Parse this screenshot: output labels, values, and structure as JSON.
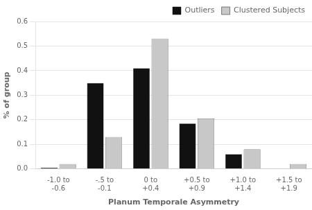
{
  "chart_data": {
    "type": "bar",
    "categories": [
      "-1.0 to\n-0.6",
      "-.5 to\n-0.1",
      "0 to\n+0.4",
      "+0.5 to\n+0.9",
      "+1.0 to\n+1.4",
      "+1.5 to\n+1.9"
    ],
    "series": [
      {
        "name": "Outliers",
        "color": "#111111",
        "values": [
          0.005,
          0.35,
          0.41,
          0.185,
          0.06,
          0.0
        ]
      },
      {
        "name": "Clustered\nSubjects",
        "color": "#c8c8c8",
        "values": [
          0.02,
          0.13,
          0.53,
          0.205,
          0.08,
          0.02
        ]
      }
    ],
    "xlabel": "Planum Temporale Asymmetry",
    "ylabel": "% of group",
    "ylim": [
      0,
      0.6
    ],
    "yticks": [
      {
        "value": 0.0,
        "label": "0.0"
      },
      0.1,
      0.2,
      0.3,
      0.4,
      0.5,
      0.6
    ],
    "grid": true,
    "legend": "upper right"
  }
}
